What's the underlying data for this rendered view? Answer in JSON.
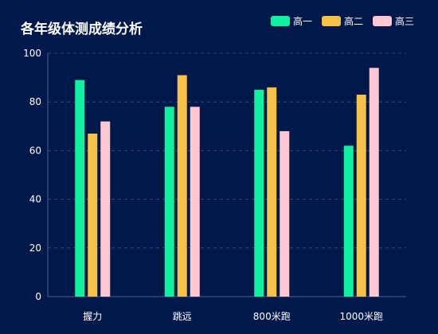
{
  "chart_data": {
    "type": "bar",
    "title": "各年级体测成绩分析",
    "xlabel": "",
    "ylabel": "",
    "categories": [
      "握力",
      "跳远",
      "800米跑",
      "1000米跑"
    ],
    "series": [
      {
        "name": "高一",
        "color": "#10f2a0",
        "values": [
          89,
          78,
          85,
          62
        ]
      },
      {
        "name": "高二",
        "color": "#f5c247",
        "values": [
          67,
          91,
          86,
          83
        ]
      },
      {
        "name": "高三",
        "color": "#ffc7d1",
        "values": [
          72,
          78,
          68,
          94
        ]
      }
    ],
    "ylim": [
      0,
      100
    ],
    "yticks": [
      "0",
      "20",
      "40",
      "60",
      "80",
      "100"
    ],
    "grid": true,
    "legend_position": "top-right"
  }
}
